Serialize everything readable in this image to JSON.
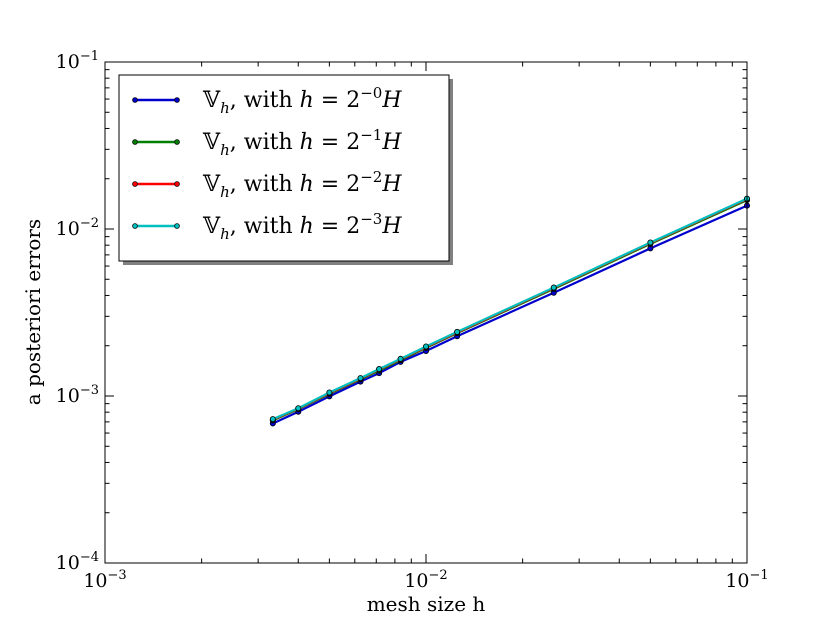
{
  "chart_data": {
    "type": "line",
    "xscale": "log",
    "yscale": "log",
    "xlim": [
      0.001,
      0.1
    ],
    "ylim": [
      0.0001,
      0.1
    ],
    "xlabel": "mesh size h",
    "ylabel": "a posteriori errors",
    "grid": false,
    "legend_position": "upper-left",
    "x_ticks": [
      {
        "base": "10",
        "exp": "−3",
        "value": 0.001
      },
      {
        "base": "10",
        "exp": "−2",
        "value": 0.01
      },
      {
        "base": "10",
        "exp": "−1",
        "value": 0.1
      }
    ],
    "y_ticks": [
      {
        "base": "10",
        "exp": "−4",
        "value": 0.0001
      },
      {
        "base": "10",
        "exp": "−3",
        "value": 0.001
      },
      {
        "base": "10",
        "exp": "−2",
        "value": 0.01
      },
      {
        "base": "10",
        "exp": "−1",
        "value": 0.1
      }
    ],
    "x": [
      0.1,
      0.05,
      0.025,
      0.0125,
      0.01,
      0.008333,
      0.007143,
      0.00625,
      0.005,
      0.004,
      0.003333
    ],
    "series": [
      {
        "name": "V_h, with h = 2^{-0} H",
        "legend": {
          "sym": "𝕍",
          "sub": "h",
          "rest": ", with ",
          "var": "h",
          "eq": " = 2",
          "exp": "−0",
          "tail": "H"
        },
        "color": "#0000cc",
        "values": [
          0.0138,
          0.00765,
          0.00415,
          0.00228,
          0.00186,
          0.0016,
          0.00137,
          0.00122,
          0.000995,
          0.000805,
          0.000685
        ]
      },
      {
        "name": "V_h, with h = 2^{-1} H",
        "legend": {
          "sym": "𝕍",
          "sub": "h",
          "rest": ", with ",
          "var": "h",
          "eq": " = 2",
          "exp": "−1",
          "tail": "H"
        },
        "color": "#008000",
        "values": [
          0.0149,
          0.00815,
          0.00438,
          0.00238,
          0.00194,
          0.00164,
          0.00142,
          0.00126,
          0.00103,
          0.000835,
          0.000715
        ]
      },
      {
        "name": "V_h, with h = 2^{-2} H",
        "legend": {
          "sym": "𝕍",
          "sub": "h",
          "rest": ", with ",
          "var": "h",
          "eq": " = 2",
          "exp": "−2",
          "tail": "H"
        },
        "color": "#ff0000",
        "values": [
          0.0151,
          0.00825,
          0.00443,
          0.0024,
          0.00196,
          0.00166,
          0.00144,
          0.00127,
          0.00104,
          0.00084,
          0.000722
        ]
      },
      {
        "name": "V_h, with h = 2^{-3} H",
        "legend": {
          "sym": "𝕍",
          "sub": "h",
          "rest": ", with ",
          "var": "h",
          "eq": " = 2",
          "exp": "−3",
          "tail": "H"
        },
        "color": "#00bfbf",
        "values": [
          0.0152,
          0.0083,
          0.00446,
          0.00242,
          0.00198,
          0.00167,
          0.00145,
          0.00128,
          0.00105,
          0.000845,
          0.000727
        ]
      }
    ]
  }
}
